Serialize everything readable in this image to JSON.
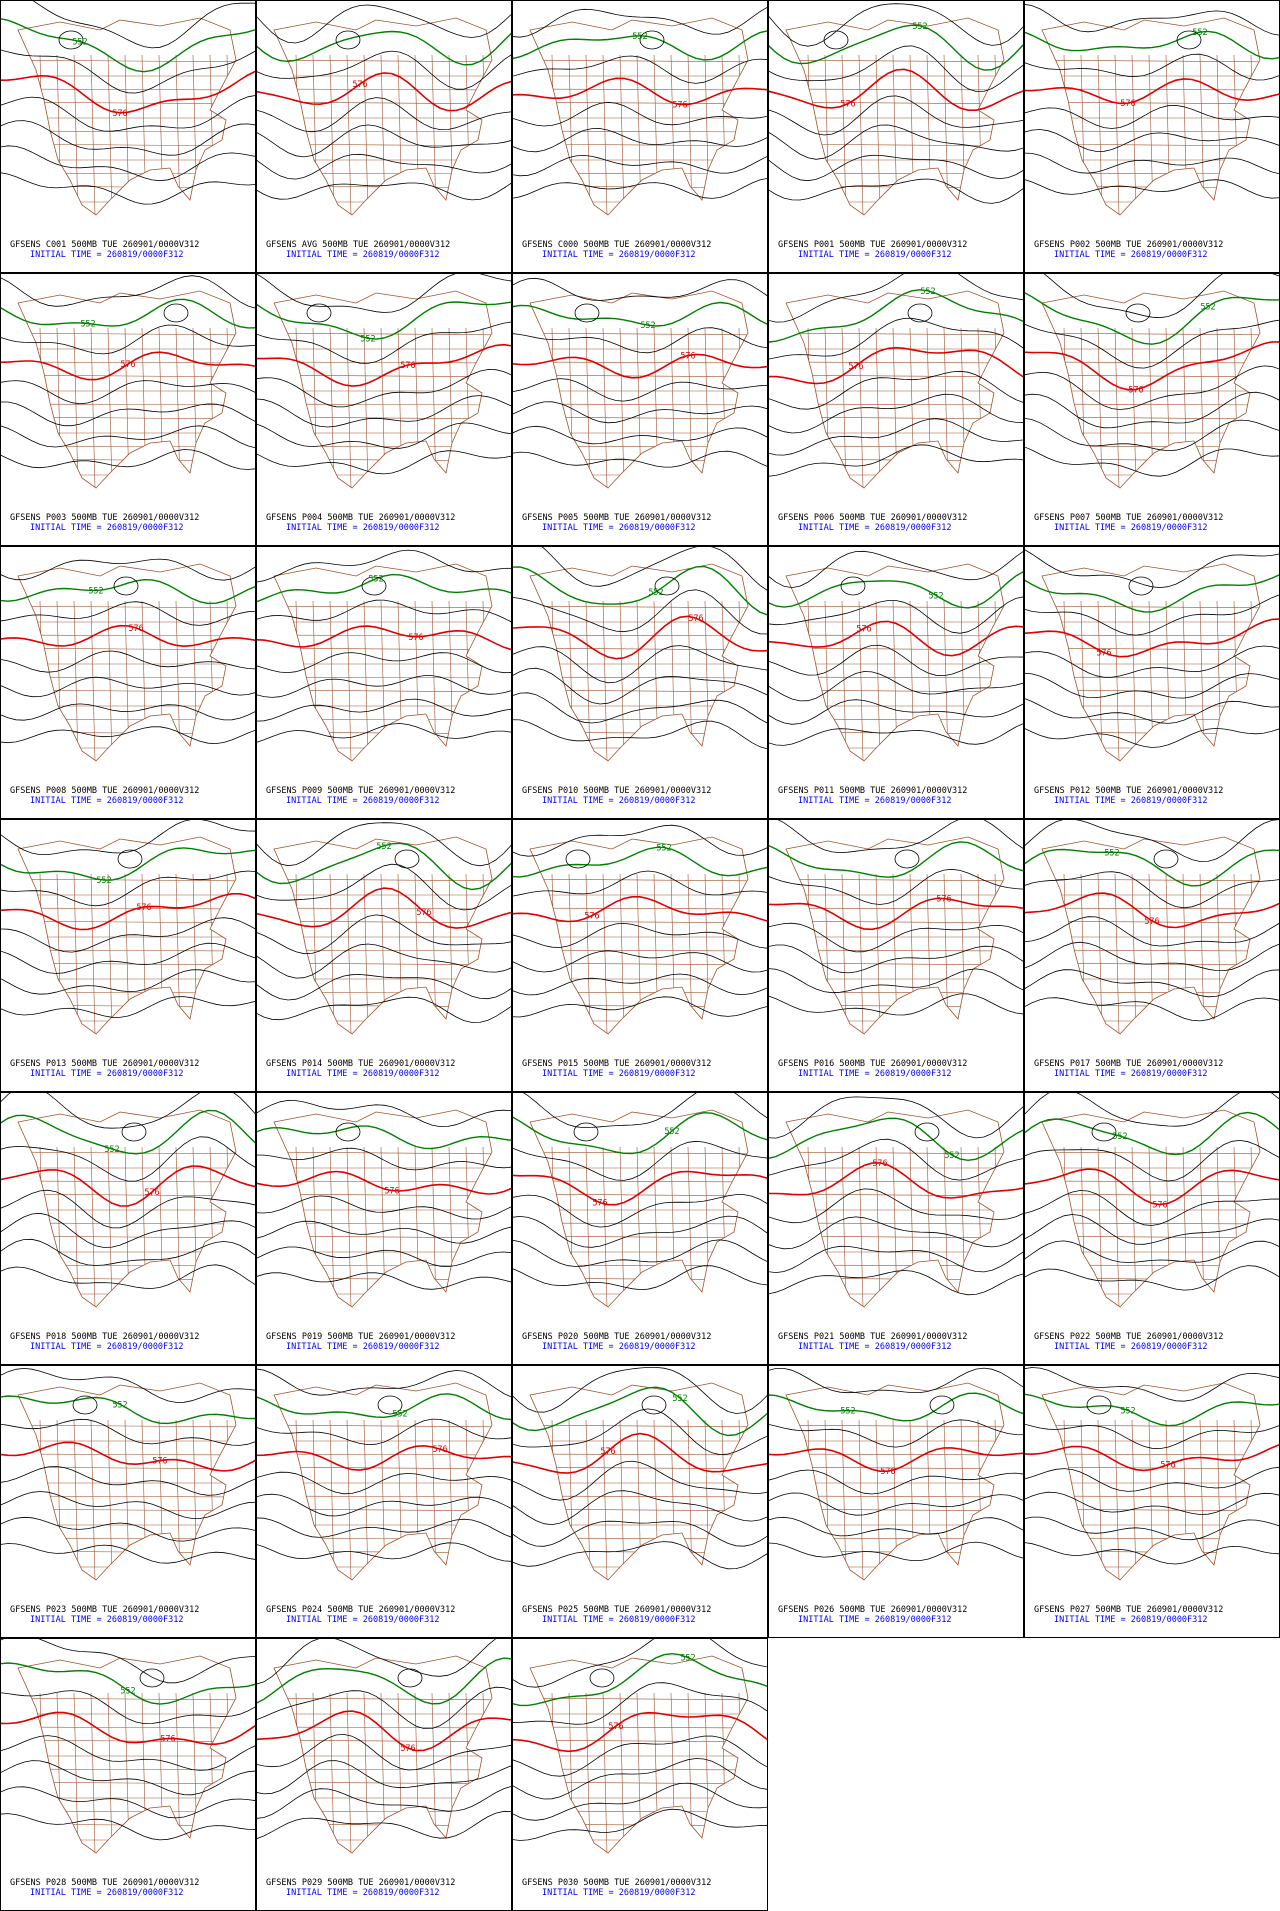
{
  "panels": [
    {
      "title": "GFSENS C001 500MB TUE 260901/0000V312",
      "init": "INITIAL TIME = 260819/0000F312",
      "contours": [
        "552",
        "576"
      ]
    },
    {
      "title": "GFSENS AVG 500MB TUE 260901/0000V312",
      "init": "INITIAL TIME = 260819/0000F312",
      "contours": [
        "576"
      ]
    },
    {
      "title": "GFSENS C000 500MB TUE 260901/0000V312",
      "init": "INITIAL TIME = 260819/0000F312",
      "contours": [
        "552",
        "576"
      ]
    },
    {
      "title": "GFSENS P001 500MB TUE 260901/0000V312",
      "init": "INITIAL TIME = 260819/0000F312",
      "contours": [
        "552",
        "576"
      ]
    },
    {
      "title": "GFSENS P002 500MB TUE 260901/0000V312",
      "init": "INITIAL TIME = 260819/0000F312",
      "contours": [
        "552",
        "576"
      ]
    },
    {
      "title": "GFSENS P003 500MB TUE 260901/0000V312",
      "init": "INITIAL TIME = 260819/0000F312",
      "contours": [
        "552",
        "576"
      ]
    },
    {
      "title": "GFSENS P004 500MB TUE 260901/0000V312",
      "init": "INITIAL TIME = 260819/0000F312",
      "contours": [
        "552",
        "576"
      ]
    },
    {
      "title": "GFSENS P005 500MB TUE 260901/0000V312",
      "init": "INITIAL TIME = 260819/0000F312",
      "contours": [
        "552",
        "576"
      ]
    },
    {
      "title": "GFSENS P006 500MB TUE 260901/0000V312",
      "init": "INITIAL TIME = 260819/0000F312",
      "contours": [
        "552",
        "576"
      ]
    },
    {
      "title": "GFSENS P007 500MB TUE 260901/0000V312",
      "init": "INITIAL TIME = 260819/0000F312",
      "contours": [
        "552",
        "576"
      ]
    },
    {
      "title": "GFSENS P008 500MB TUE 260901/0000V312",
      "init": "INITIAL TIME = 260819/0000F312",
      "contours": [
        "552",
        "576"
      ]
    },
    {
      "title": "GFSENS P009 500MB TUE 260901/0000V312",
      "init": "INITIAL TIME = 260819/0000F312",
      "contours": [
        "552",
        "576"
      ]
    },
    {
      "title": "GFSENS P010 500MB TUE 260901/0000V312",
      "init": "INITIAL TIME = 260819/0000F312",
      "contours": [
        "552",
        "576"
      ]
    },
    {
      "title": "GFSENS P011 500MB TUE 260901/0000V312",
      "init": "INITIAL TIME = 260819/0000F312",
      "contours": [
        "552",
        "576"
      ]
    },
    {
      "title": "GFSENS P012 500MB TUE 260901/0000V312",
      "init": "INITIAL TIME = 260819/0000F312",
      "contours": [
        "576"
      ]
    },
    {
      "title": "GFSENS P013 500MB TUE 260901/0000V312",
      "init": "INITIAL TIME = 260819/0000F312",
      "contours": [
        "552",
        "576"
      ]
    },
    {
      "title": "GFSENS P014 500MB TUE 260901/0000V312",
      "init": "INITIAL TIME = 260819/0000F312",
      "contours": [
        "552",
        "576"
      ]
    },
    {
      "title": "GFSENS P015 500MB TUE 260901/0000V312",
      "init": "INITIAL TIME = 260819/0000F312",
      "contours": [
        "552",
        "576"
      ]
    },
    {
      "title": "GFSENS P016 500MB TUE 260901/0000V312",
      "init": "INITIAL TIME = 260819/0000F312",
      "contours": [
        "576"
      ]
    },
    {
      "title": "GFSENS P017 500MB TUE 260901/0000V312",
      "init": "INITIAL TIME = 260819/0000F312",
      "contours": [
        "552",
        "576"
      ]
    },
    {
      "title": "GFSENS P018 500MB TUE 260901/0000V312",
      "init": "INITIAL TIME = 260819/0000F312",
      "contours": [
        "552",
        "576"
      ]
    },
    {
      "title": "GFSENS P019 500MB TUE 260901/0000V312",
      "init": "INITIAL TIME = 260819/0000F312",
      "contours": [
        "576"
      ]
    },
    {
      "title": "GFSENS P020 500MB TUE 260901/0000V312",
      "init": "INITIAL TIME = 260819/0000F312",
      "contours": [
        "552",
        "576"
      ]
    },
    {
      "title": "GFSENS P021 500MB TUE 260901/0000V312",
      "init": "INITIAL TIME = 260819/0000F312",
      "contours": [
        "552",
        "576"
      ]
    },
    {
      "title": "GFSENS P022 500MB TUE 260901/0000V312",
      "init": "INITIAL TIME = 260819/0000F312",
      "contours": [
        "552",
        "576"
      ]
    },
    {
      "title": "GFSENS P023 500MB TUE 260901/0000V312",
      "init": "INITIAL TIME = 260819/0000F312",
      "contours": [
        "552",
        "576"
      ]
    },
    {
      "title": "GFSENS P024 500MB TUE 260901/0000V312",
      "init": "INITIAL TIME = 260819/0000F312",
      "contours": [
        "552",
        "576"
      ]
    },
    {
      "title": "GFSENS P025 500MB TUE 260901/0000V312",
      "init": "INITIAL TIME = 260819/0000F312",
      "contours": [
        "552",
        "576"
      ]
    },
    {
      "title": "GFSENS P026 500MB TUE 260901/0000V312",
      "init": "INITIAL TIME = 260819/0000F312",
      "contours": [
        "552",
        "576"
      ]
    },
    {
      "title": "GFSENS P027 500MB TUE 260901/0000V312",
      "init": "INITIAL TIME = 260819/0000F312",
      "contours": [
        "552",
        "576"
      ]
    },
    {
      "title": "GFSENS P028 500MB TUE 260901/0000V312",
      "init": "INITIAL TIME = 260819/0000F312",
      "contours": [
        "552",
        "576"
      ]
    },
    {
      "title": "GFSENS P029 500MB TUE 260901/0000V312",
      "init": "INITIAL TIME = 260819/0000F312",
      "contours": [
        "576"
      ]
    },
    {
      "title": "GFSENS P030 500MB TUE 260901/0000V312",
      "init": "INITIAL TIME = 260819/0000F312",
      "contours": [
        "552",
        "576"
      ]
    }
  ]
}
